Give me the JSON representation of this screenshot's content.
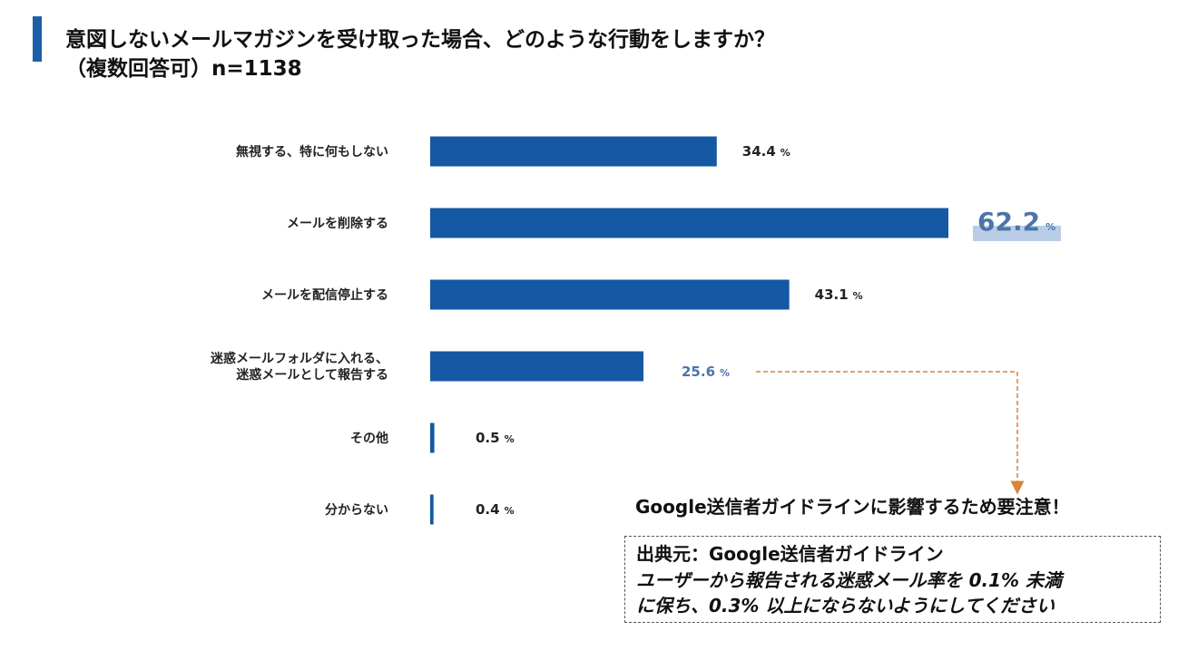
{
  "header": {
    "title_line1": "意図しないメールマガジンを受け取った場合、どのような行動をしますか？",
    "title_line2": "（複数回答可）n=1138"
  },
  "chart_data": {
    "type": "bar",
    "orientation": "horizontal",
    "categories": [
      [
        "無視する、特に何もしない"
      ],
      [
        "メールを削除する"
      ],
      [
        "メールを配信停止する"
      ],
      [
        "迷惑メールフォルダに入れる、",
        "迷惑メールとして報告する"
      ],
      [
        "その他"
      ],
      [
        "分からない"
      ]
    ],
    "values": [
      34.4,
      62.2,
      43.1,
      25.6,
      0.5,
      0.4
    ],
    "value_labels": [
      "34.4",
      "62.2",
      "43.1",
      "25.6",
      "0.5",
      "0.4"
    ],
    "unit": "%",
    "highlight_index": 1,
    "secondary_highlight_index": 3,
    "bar_color": "#1558a3",
    "highlight_text_color": "#4c74a8",
    "highlight_box_color": "#b9cde6",
    "arrow_color": "#d9823b",
    "grid": false
  },
  "callout": {
    "text": "Google送信者ガイドラインに影響するため要注意！"
  },
  "source": {
    "title": "出典元：Google送信者ガイドライン",
    "line1": "ユーザーから報告される迷惑メール率を 0.1% 未満",
    "line2": "に保ち、0.3% 以上にならないようにしてください"
  }
}
